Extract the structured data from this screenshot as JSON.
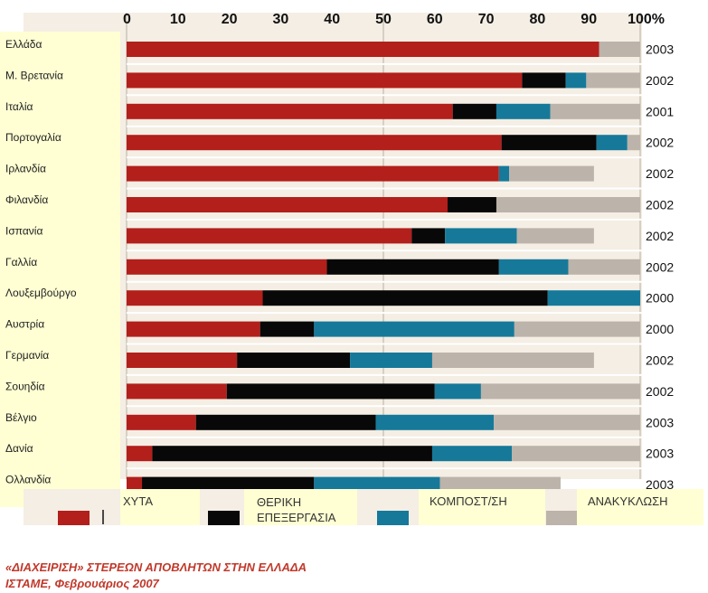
{
  "chart_data": {
    "type": "bar",
    "stacked": true,
    "orientation": "horizontal",
    "x_ticks": [
      "0",
      "10",
      "20",
      "30",
      "40",
      "50",
      "60",
      "70",
      "80",
      "90",
      "100%"
    ],
    "xlim": [
      0,
      100
    ],
    "grid": true,
    "legend_position": "bottom",
    "categories": [
      "Ελλάδα",
      "Μ. Βρετανία",
      "Ιταλία",
      "Πορτογαλία",
      "Ιρλανδία",
      "Φιλανδία",
      "Ισπανία",
      "Γαλλία",
      "Λουξεμβούργο",
      "Αυστρία",
      "Γερμανία",
      "Σουηδία",
      "Βέλγιο",
      "Δανία",
      "Ολλανδία"
    ],
    "years": [
      "2003",
      "2002",
      "2001",
      "2002",
      "2002",
      "2002",
      "2002",
      "2002",
      "2000",
      "2000",
      "2002",
      "2002",
      "2003",
      "2003",
      "2003"
    ],
    "series": [
      {
        "name": "ΧΥΤΑ",
        "color": "#b31f1b",
        "values": [
          92,
          77,
          63.5,
          73,
          72.5,
          62.5,
          55.5,
          39,
          26.5,
          26,
          21.5,
          19.5,
          13.5,
          5,
          3
        ]
      },
      {
        "name": "ΘΕΡΙΚΗ ΕΠΕΞΕΡΓΑΣΙΑ",
        "color": "#080808",
        "values": [
          0,
          8.5,
          8.5,
          18.5,
          0,
          9.5,
          6.5,
          33.5,
          55.5,
          10.5,
          22,
          40.5,
          35,
          54.5,
          33.5
        ]
      },
      {
        "name": "ΚΟΜΠΟΣΤ/ΣΗ",
        "color": "#16799a",
        "values": [
          0,
          4,
          10.5,
          6,
          2,
          0,
          14,
          13.5,
          18,
          39,
          16,
          9,
          23,
          15.5,
          24.5
        ]
      },
      {
        "name": "ΑΝΑΚΥΚΛΩΣΗ",
        "color": "#bcb3aa",
        "values": [
          8,
          10.5,
          17.5,
          2.5,
          16.5,
          28,
          15,
          14,
          0,
          24.5,
          31.5,
          31,
          28.5,
          25,
          23.5
        ]
      }
    ]
  },
  "caption": {
    "line1": "«ΔΙΑΧΕΙΡΙΣΗ» ΣΤΕΡΕΩΝ ΑΠΟΒΛΗΤΩΝ ΣΤΗΝ ΕΛΛΑΔΑ",
    "line2": "ΙΣΤΑΜΕ, Φεβρουάριος  2007"
  },
  "colors": {
    "plot_background": "#f4eee4",
    "label_background": "#ffffd3",
    "caption": "#c0392b"
  }
}
